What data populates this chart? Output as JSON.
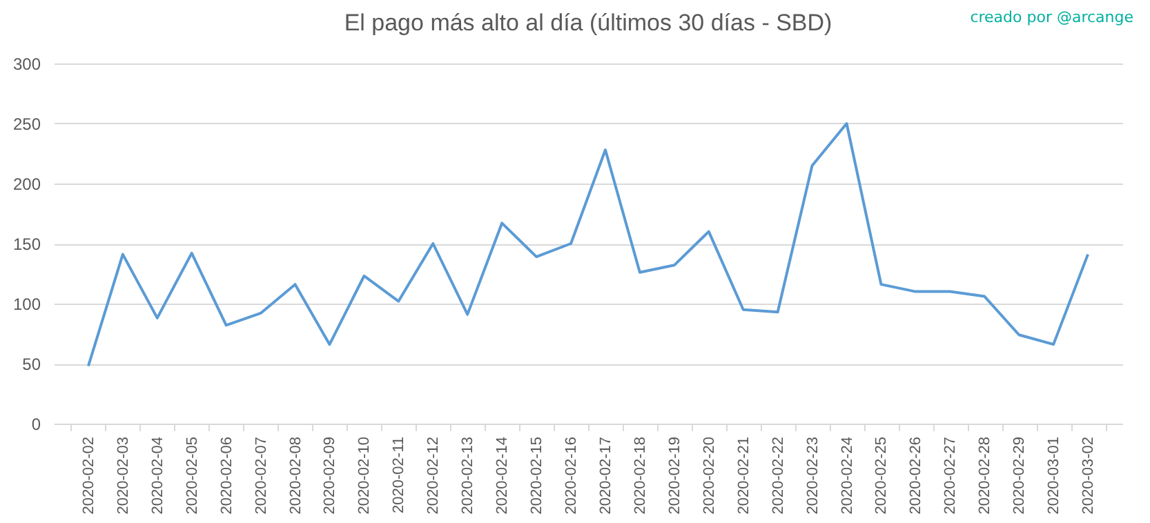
{
  "chart_data": {
    "type": "line",
    "title": "El pago más alto al día (últimos 30 días - SBD)",
    "annotations": [
      "creado por @arcange"
    ],
    "categories": [
      "2020-02-02",
      "2020-02-03",
      "2020-02-04",
      "2020-02-05",
      "2020-02-06",
      "2020-02-07",
      "2020-02-08",
      "2020-02-09",
      "2020-02-10",
      "2020-02-11",
      "2020-02-12",
      "2020-02-13",
      "2020-02-14",
      "2020-02-15",
      "2020-02-16",
      "2020-02-17",
      "2020-02-18",
      "2020-02-19",
      "2020-02-20",
      "2020-02-21",
      "2020-02-22",
      "2020-02-23",
      "2020-02-24",
      "2020-02-25",
      "2020-02-26",
      "2020-02-27",
      "2020-02-28",
      "2020-02-29",
      "2020-03-01",
      "2020-03-02"
    ],
    "series": [
      {
        "color": "#5b9bd5",
        "values": [
          48,
          141,
          88,
          142,
          82,
          92,
          116,
          66,
          123,
          102,
          150,
          91,
          167,
          139,
          150,
          228,
          126,
          132,
          160,
          95,
          93,
          215,
          250,
          116,
          110,
          110,
          106,
          74,
          66,
          141
        ]
      }
    ],
    "ylim": [
      0,
      300
    ],
    "yticks": [
      0,
      50,
      100,
      150,
      200,
      250,
      300
    ],
    "grid": "y",
    "legend": false,
    "marker": "none",
    "line_style": "solid"
  }
}
